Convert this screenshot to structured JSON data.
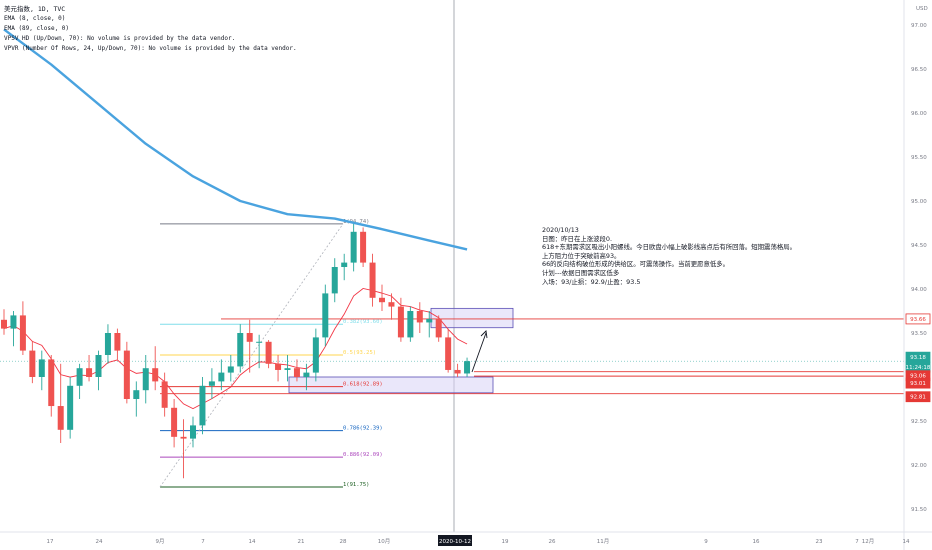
{
  "legend": {
    "symbol": "美元指数, 1D, TVC",
    "lines": [
      "EMA (8, close, 0)",
      "EMA (89, close, 0)",
      "VPSV HD (Up/Down, 70): No volume is provided by the data vendor.",
      "VPVR (Number Of Rows, 24, Up/Down, 70): No volume is provided by the data vendor."
    ]
  },
  "note": {
    "lines": [
      "2020/10/13",
      "日图：昨日在上涨波段0.",
      "618+东期需求区吸出小阳螺线。今日欧盘小幅上破影线高点后有所回落。短期震荡格局。",
      "上方阻力位于突破前高93。",
      "66的反向结构破位形成的供给区。可震荡操作。当前更愿意低多。",
      "计划---依据日图需求区低多",
      "入场：93/止损：92.9/止盈：93.5"
    ]
  },
  "colors": {
    "up": "#26a69a",
    "down": "#ef5350",
    "ema_fast": "#f23645",
    "ema_slow": "#4aa3df",
    "zone_fill": "#d9d4f5",
    "zone_stroke": "#5b4fb5",
    "red_line": "#e53935"
  },
  "chart_data": {
    "type": "candlestick",
    "title": "美元指数, 1D, TVC",
    "y_axis": {
      "unit": "USD",
      "ylim": [
        91.3,
        97.3
      ],
      "ticks": [
        "97.00",
        "96.50",
        "96.00",
        "95.50",
        "95.00",
        "94.50",
        "94.00",
        "93.50",
        "93.00",
        "92.50",
        "92.00",
        "91.50"
      ]
    },
    "x_axis": {
      "tick_labels": [
        "17",
        "24",
        "9月",
        "7",
        "14",
        "21",
        "28",
        "10月",
        "2020-10-12",
        "19",
        "26",
        "11月",
        "9",
        "16",
        "23",
        "12月",
        "7",
        "14"
      ]
    },
    "price_badges": [
      {
        "value": "93.66",
        "kind": "red-outline"
      },
      {
        "value": "93.18",
        "kind": "teal"
      },
      {
        "value": "11:24:18",
        "kind": "teal"
      },
      {
        "value": "93.06",
        "kind": "red"
      },
      {
        "value": "93.01",
        "kind": "red"
      },
      {
        "value": "92.81",
        "kind": "red"
      }
    ],
    "candles": [
      {
        "o": 93.65,
        "h": 93.77,
        "l": 93.48,
        "c": 93.55
      },
      {
        "o": 93.55,
        "h": 93.75,
        "l": 93.35,
        "c": 93.7
      },
      {
        "o": 93.7,
        "h": 93.86,
        "l": 93.25,
        "c": 93.3
      },
      {
        "o": 93.3,
        "h": 93.41,
        "l": 92.93,
        "c": 93.0
      },
      {
        "o": 93.0,
        "h": 93.3,
        "l": 92.85,
        "c": 93.2
      },
      {
        "o": 93.2,
        "h": 93.25,
        "l": 92.55,
        "c": 92.67
      },
      {
        "o": 92.67,
        "h": 93.15,
        "l": 92.25,
        "c": 92.4
      },
      {
        "o": 92.4,
        "h": 93.0,
        "l": 92.3,
        "c": 92.9
      },
      {
        "o": 92.9,
        "h": 93.15,
        "l": 92.75,
        "c": 93.1
      },
      {
        "o": 93.1,
        "h": 93.25,
        "l": 92.95,
        "c": 93.0
      },
      {
        "o": 93.0,
        "h": 93.3,
        "l": 92.85,
        "c": 93.25
      },
      {
        "o": 93.25,
        "h": 93.6,
        "l": 93.15,
        "c": 93.5
      },
      {
        "o": 93.5,
        "h": 93.55,
        "l": 93.2,
        "c": 93.3
      },
      {
        "o": 93.3,
        "h": 93.4,
        "l": 92.7,
        "c": 92.75
      },
      {
        "o": 92.75,
        "h": 92.95,
        "l": 92.55,
        "c": 92.85
      },
      {
        "o": 92.85,
        "h": 93.25,
        "l": 92.7,
        "c": 93.1
      },
      {
        "o": 93.1,
        "h": 93.35,
        "l": 92.85,
        "c": 92.95
      },
      {
        "o": 92.95,
        "h": 93.05,
        "l": 92.55,
        "c": 92.65
      },
      {
        "o": 92.65,
        "h": 92.75,
        "l": 92.2,
        "c": 92.32
      },
      {
        "o": 92.32,
        "h": 92.52,
        "l": 91.85,
        "c": 92.3
      },
      {
        "o": 92.3,
        "h": 92.55,
        "l": 92.2,
        "c": 92.45
      },
      {
        "o": 92.45,
        "h": 93.0,
        "l": 92.35,
        "c": 92.9
      },
      {
        "o": 92.9,
        "h": 93.1,
        "l": 92.75,
        "c": 92.95
      },
      {
        "o": 92.95,
        "h": 93.2,
        "l": 92.85,
        "c": 93.05
      },
      {
        "o": 93.05,
        "h": 93.25,
        "l": 92.95,
        "c": 93.12
      },
      {
        "o": 93.12,
        "h": 93.6,
        "l": 93.05,
        "c": 93.5
      },
      {
        "o": 93.5,
        "h": 93.65,
        "l": 93.05,
        "c": 93.4
      },
      {
        "o": 93.4,
        "h": 93.48,
        "l": 93.1,
        "c": 93.4
      },
      {
        "o": 93.4,
        "h": 93.42,
        "l": 93.1,
        "c": 93.15
      },
      {
        "o": 93.15,
        "h": 93.25,
        "l": 92.95,
        "c": 93.08
      },
      {
        "o": 93.08,
        "h": 93.25,
        "l": 92.95,
        "c": 93.1
      },
      {
        "o": 93.1,
        "h": 93.2,
        "l": 92.95,
        "c": 93.0
      },
      {
        "o": 93.0,
        "h": 93.15,
        "l": 92.85,
        "c": 93.05
      },
      {
        "o": 93.05,
        "h": 93.55,
        "l": 92.95,
        "c": 93.45
      },
      {
        "o": 93.45,
        "h": 94.05,
        "l": 93.35,
        "c": 93.95
      },
      {
        "o": 93.95,
        "h": 94.35,
        "l": 93.85,
        "c": 94.25
      },
      {
        "o": 94.25,
        "h": 94.4,
        "l": 94.1,
        "c": 94.3
      },
      {
        "o": 94.3,
        "h": 94.74,
        "l": 94.2,
        "c": 94.65
      },
      {
        "o": 94.65,
        "h": 94.7,
        "l": 94.25,
        "c": 94.3
      },
      {
        "o": 94.3,
        "h": 94.4,
        "l": 93.8,
        "c": 93.9
      },
      {
        "o": 93.9,
        "h": 94.05,
        "l": 93.75,
        "c": 93.85
      },
      {
        "o": 93.85,
        "h": 93.95,
        "l": 93.65,
        "c": 93.8
      },
      {
        "o": 93.8,
        "h": 93.9,
        "l": 93.4,
        "c": 93.45
      },
      {
        "o": 93.45,
        "h": 93.8,
        "l": 93.4,
        "c": 93.75
      },
      {
        "o": 93.75,
        "h": 93.85,
        "l": 93.5,
        "c": 93.62
      },
      {
        "o": 93.62,
        "h": 93.75,
        "l": 93.45,
        "c": 93.66
      },
      {
        "o": 93.66,
        "h": 93.7,
        "l": 93.4,
        "c": 93.45
      },
      {
        "o": 93.45,
        "h": 93.55,
        "l": 93.05,
        "c": 93.08
      },
      {
        "o": 93.08,
        "h": 93.15,
        "l": 93.0,
        "c": 93.04
      },
      {
        "o": 93.04,
        "h": 93.22,
        "l": 93.0,
        "c": 93.18
      }
    ],
    "ema_slow": [
      {
        "i": 0,
        "v": 96.95
      },
      {
        "i": 5,
        "v": 96.55
      },
      {
        "i": 10,
        "v": 96.1
      },
      {
        "i": 15,
        "v": 95.65
      },
      {
        "i": 20,
        "v": 95.28
      },
      {
        "i": 25,
        "v": 95.0
      },
      {
        "i": 30,
        "v": 94.85
      },
      {
        "i": 35,
        "v": 94.8
      },
      {
        "i": 40,
        "v": 94.68
      },
      {
        "i": 45,
        "v": 94.55
      },
      {
        "i": 49,
        "v": 94.45
      }
    ],
    "fib_levels": [
      {
        "label": "1(94.74)",
        "value": 94.74,
        "color": "#787b86"
      },
      {
        "label": "0.382(93.60)",
        "value": 93.6,
        "color": "#80deea"
      },
      {
        "label": "0.5(93.25)",
        "value": 93.25,
        "color": "#ffd54f"
      },
      {
        "label": "0.618(92.89)",
        "value": 92.89,
        "color": "#e53935"
      },
      {
        "label": "0.786(92.39)",
        "value": 92.39,
        "color": "#1565c0"
      },
      {
        "label": "0.886(92.09)",
        "value": 92.09,
        "color": "#ab47bc"
      },
      {
        "label": "1(91.75)",
        "value": 91.75,
        "color": "#1b5e20"
      }
    ],
    "zones": [
      {
        "kind": "demand",
        "top": 93.0,
        "bottom": 92.82
      },
      {
        "kind": "supply",
        "top": 93.78,
        "bottom": 93.56
      }
    ],
    "h_lines": [
      93.66,
      93.06,
      93.01,
      92.81
    ]
  }
}
